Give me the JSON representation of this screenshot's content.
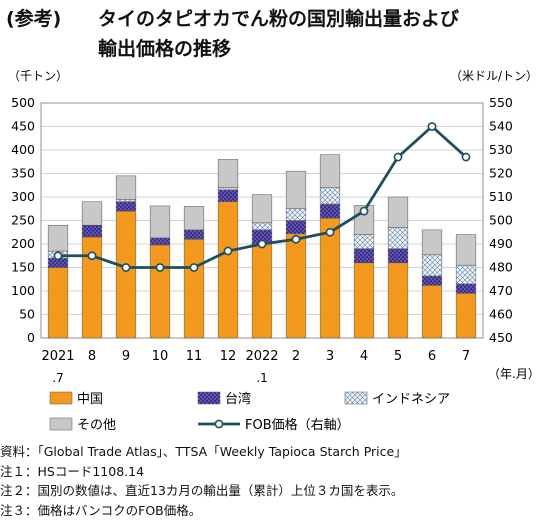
{
  "title": {
    "tag": "(参考)",
    "line1": "タイのタピオカでん粉の国別輸出量および",
    "line2": "輸出価格の推移"
  },
  "units": {
    "left": "（千トン）",
    "right": "（米ドル/トン）",
    "x": "（年.月）"
  },
  "chart_data": {
    "type": "bar",
    "stacked": true,
    "categories": [
      "2021\n.7",
      "8",
      "9",
      "10",
      "11",
      "12",
      "2022\n.1",
      "2",
      "3",
      "4",
      "5",
      "6",
      "7"
    ],
    "series": [
      {
        "name": "中国",
        "color": "#f39a1e",
        "values": [
          150,
          215,
          270,
          198,
          210,
          290,
          200,
          222,
          255,
          160,
          160,
          112,
          95
        ]
      },
      {
        "name": "台湾",
        "color": "#3b2e8f",
        "values": [
          20,
          25,
          20,
          15,
          20,
          25,
          30,
          28,
          30,
          30,
          30,
          20,
          20
        ]
      },
      {
        "name": "インドネシア",
        "color": "#e8f1f8",
        "values": [
          15,
          0,
          5,
          0,
          0,
          5,
          15,
          25,
          35,
          30,
          45,
          45,
          40
        ]
      },
      {
        "name": "その他",
        "color": "#c8c8c8",
        "values": [
          55,
          50,
          50,
          68,
          50,
          60,
          60,
          80,
          70,
          62,
          65,
          53,
          65
        ]
      }
    ],
    "line_series": {
      "name": "FOB価格（右軸）",
      "color": "#1f4e5f",
      "values": [
        485,
        485,
        480,
        480,
        480,
        487,
        490,
        492,
        495,
        504,
        527,
        540,
        527
      ]
    },
    "ylim_left": [
      0,
      500
    ],
    "yticks_left": [
      0,
      50,
      100,
      150,
      200,
      250,
      300,
      350,
      400,
      450,
      500
    ],
    "ylim_right": [
      450,
      550
    ],
    "yticks_right": [
      450,
      460,
      470,
      480,
      490,
      500,
      510,
      520,
      530,
      540,
      550
    ],
    "legend_position": "bottom"
  },
  "notes": [
    "資料：「Global Trade Atlas」、TTSA「Weekly Tapioca Starch Price」",
    "注１：HSコード1108.14",
    "注２：国別の数値は、直近13カ月の輸出量（累計）上位３カ国を表示。",
    "注３：価格はバンコクのFOB価格。"
  ]
}
